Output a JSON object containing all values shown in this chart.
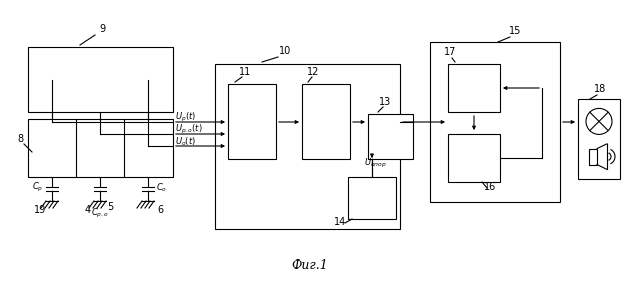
{
  "bg_color": "#ffffff",
  "line_color": "#000000",
  "title": "Фиг.1",
  "fig_w": 6.4,
  "fig_h": 2.97,
  "dpi": 100
}
